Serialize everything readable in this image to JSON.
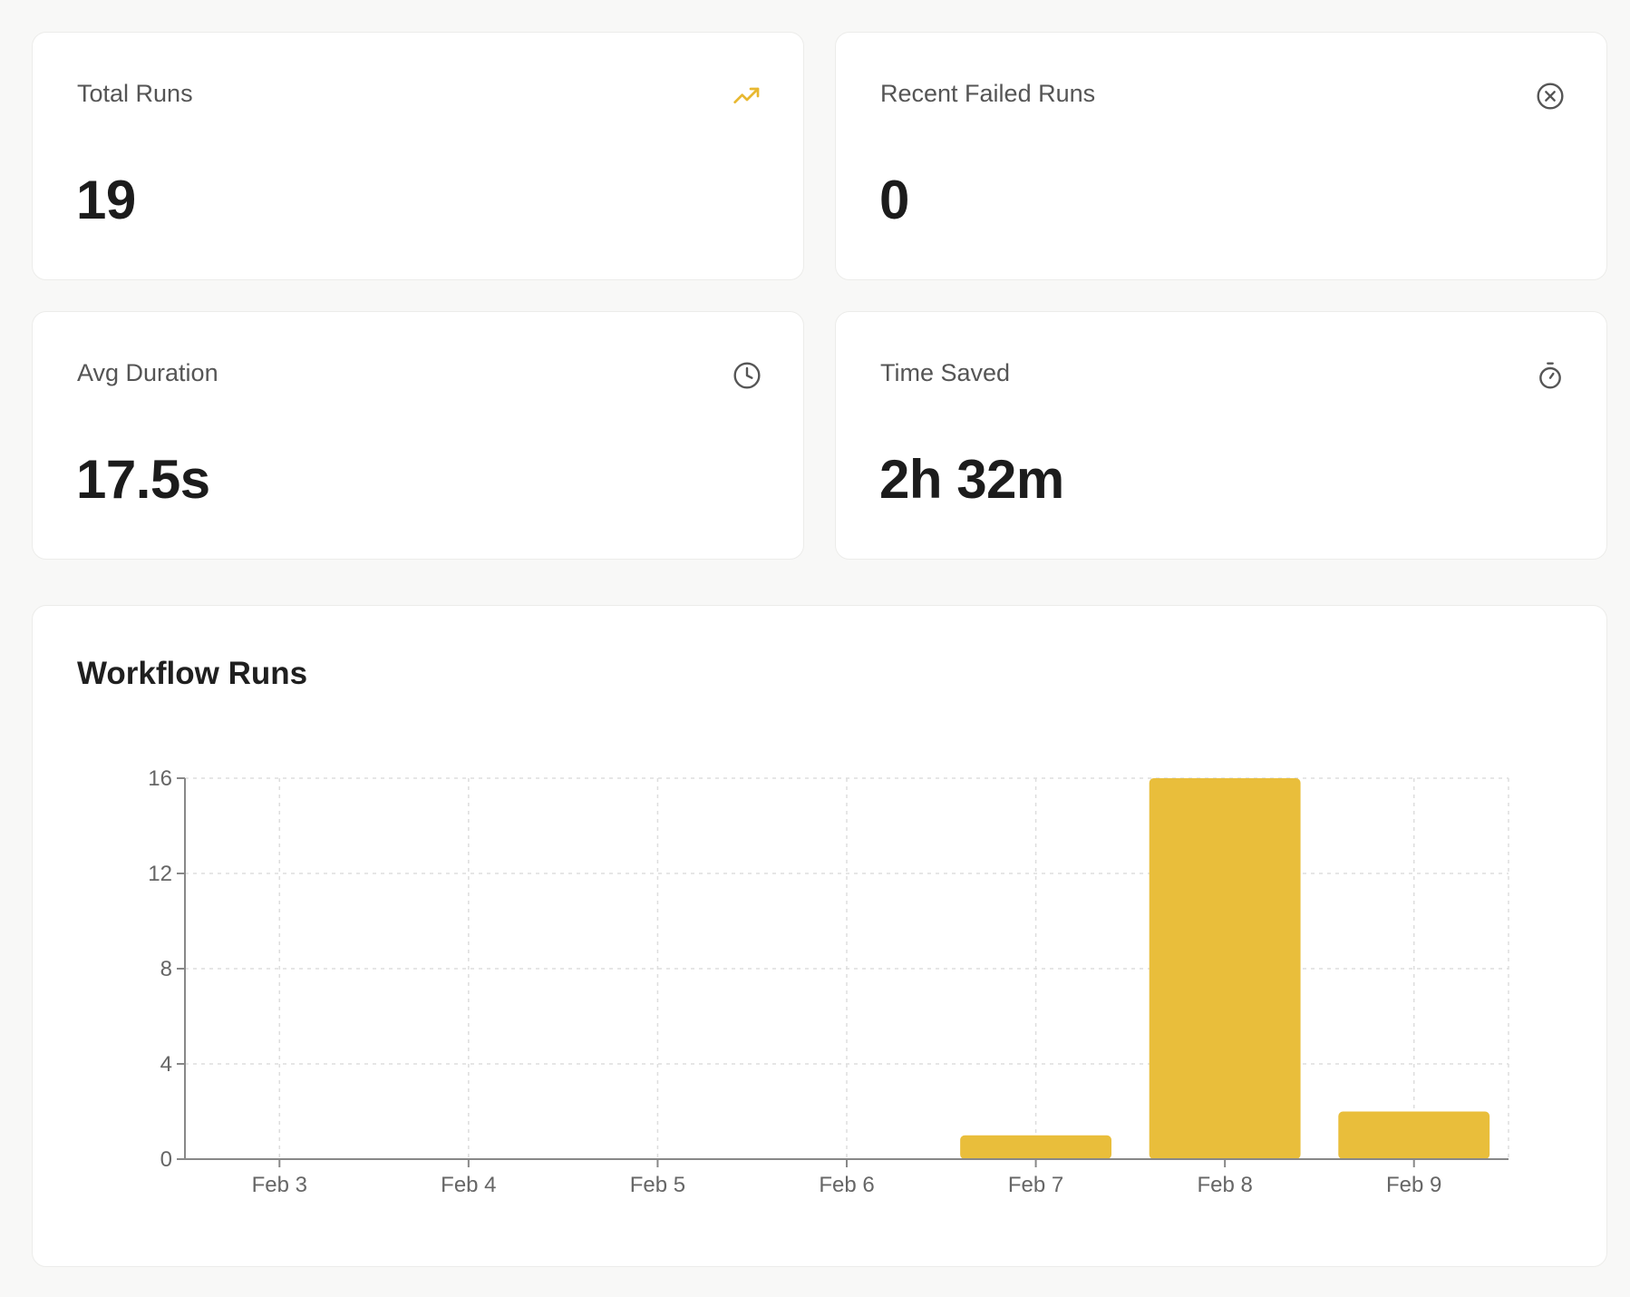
{
  "stats": [
    {
      "label": "Total Runs",
      "value": "19",
      "icon": "trend-up-icon",
      "icon_color": "#e8b830"
    },
    {
      "label": "Recent Failed Runs",
      "value": "0",
      "icon": "x-circle-icon",
      "icon_color": "#555555"
    },
    {
      "label": "Avg Duration",
      "value": "17.5s",
      "icon": "clock-icon",
      "icon_color": "#555555"
    },
    {
      "label": "Time Saved",
      "value": "2h 32m",
      "icon": "stopwatch-icon",
      "icon_color": "#555555"
    }
  ],
  "chart": {
    "title": "Workflow Runs"
  },
  "chart_data": {
    "type": "bar",
    "title": "Workflow Runs",
    "categories": [
      "Feb 3",
      "Feb 4",
      "Feb 5",
      "Feb 6",
      "Feb 7",
      "Feb 8",
      "Feb 9"
    ],
    "values": [
      0,
      0,
      0,
      0,
      1,
      16,
      2
    ],
    "yticks": [
      0,
      4,
      8,
      12,
      16
    ],
    "ylim": [
      0,
      16
    ],
    "xlabel": "",
    "ylabel": "",
    "grid": true,
    "bar_color": "#e9be3b"
  }
}
